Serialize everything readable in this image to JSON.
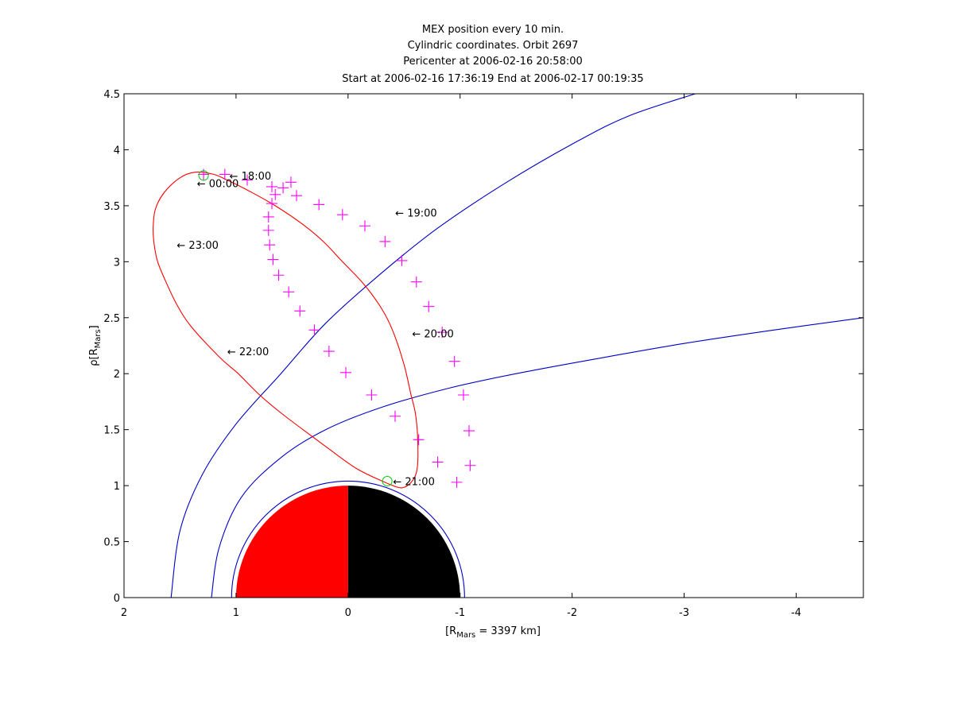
{
  "chart_data": {
    "type": "line",
    "title": [
      "MEX position every 10 min.",
      "Cylindric coordinates. Orbit 2697",
      "Pericenter at 2006-02-16 20:58:00",
      "Start at 2006-02-16 17:36:19 End at 2006-02-17 00:19:35"
    ],
    "xlabel": {
      "base": "[R",
      "sub": "Mars",
      "rest": " = 3397 km]"
    },
    "ylabel": {
      "base": "ρ[R",
      "sub": "Mars",
      "rest": "]"
    },
    "xlim": [
      2,
      -4.6
    ],
    "ylim": [
      0,
      4.5
    ],
    "x_ticks": [
      2,
      1,
      0,
      -1,
      -2,
      -3,
      -4
    ],
    "x_tick_labels": [
      "2",
      "1",
      "0",
      "-1",
      "-2",
      "-3",
      "-4"
    ],
    "y_ticks": [
      0,
      0.5,
      1,
      1.5,
      2,
      2.5,
      3,
      3.5,
      4,
      4.5
    ],
    "y_tick_labels": [
      "0",
      "0.5",
      "1",
      "1.5",
      "2",
      "2.5",
      "3",
      "3.5",
      "4",
      "4.5"
    ],
    "grid": false,
    "colors": {
      "orbit": "#ff0000",
      "markers": "#ff00ff",
      "boundaries": "#0000c8",
      "endpoints": "#00cc00",
      "dayside": "#ff0000",
      "nightside": "#000000",
      "axes": "#000000"
    },
    "mars": {
      "radius": 1,
      "dayside": "x>0",
      "nightside": "x<0"
    },
    "boundaries": [
      {
        "name": "bow shock",
        "x0": 1.58,
        "curve": [
          [
            1.58,
            0
          ],
          [
            1.5,
            0.6
          ],
          [
            1.3,
            1.1
          ],
          [
            1.0,
            1.55
          ],
          [
            0.6,
            2.0
          ],
          [
            0.2,
            2.45
          ],
          [
            -0.3,
            2.9
          ],
          [
            -0.8,
            3.3
          ],
          [
            -1.4,
            3.7
          ],
          [
            -2.0,
            4.05
          ],
          [
            -2.5,
            4.3
          ],
          [
            -3.1,
            4.5
          ]
        ]
      },
      {
        "name": "induced magnetospheric boundary",
        "x0": 1.22,
        "curve": [
          [
            1.22,
            0
          ],
          [
            1.15,
            0.45
          ],
          [
            0.95,
            0.9
          ],
          [
            0.6,
            1.25
          ],
          [
            0.2,
            1.5
          ],
          [
            -0.3,
            1.7
          ],
          [
            -0.9,
            1.87
          ],
          [
            -1.5,
            2.0
          ],
          [
            -2.2,
            2.13
          ],
          [
            -3.0,
            2.27
          ],
          [
            -3.8,
            2.39
          ],
          [
            -4.6,
            2.5
          ]
        ]
      },
      {
        "name": "ionosphere",
        "radius": 1.04
      }
    ],
    "orbit": [
      [
        -0.35,
        1.02
      ],
      [
        -0.48,
        0.98
      ],
      [
        -0.58,
        1.05
      ],
      [
        -0.62,
        1.18
      ],
      [
        -0.62,
        1.45
      ],
      [
        -0.6,
        1.65
      ],
      [
        -0.56,
        1.82
      ],
      [
        -0.5,
        2.08
      ],
      [
        -0.4,
        2.38
      ],
      [
        -0.3,
        2.58
      ],
      [
        -0.14,
        2.8
      ],
      [
        0.05,
        3.0
      ],
      [
        0.22,
        3.18
      ],
      [
        0.4,
        3.33
      ],
      [
        0.65,
        3.5
      ],
      [
        0.88,
        3.63
      ],
      [
        1.08,
        3.73
      ],
      [
        1.2,
        3.78
      ],
      [
        1.36,
        3.8
      ],
      [
        1.5,
        3.75
      ],
      [
        1.64,
        3.62
      ],
      [
        1.72,
        3.47
      ],
      [
        1.74,
        3.3
      ],
      [
        1.73,
        3.15
      ],
      [
        1.7,
        3.0
      ],
      [
        1.63,
        2.83
      ],
      [
        1.53,
        2.62
      ],
      [
        1.4,
        2.42
      ],
      [
        1.15,
        2.15
      ],
      [
        0.98,
        2.0
      ],
      [
        0.8,
        1.82
      ],
      [
        0.6,
        1.65
      ],
      [
        0.2,
        1.35
      ],
      [
        -0.08,
        1.15
      ],
      [
        -0.35,
        1.02
      ]
    ],
    "markers_10min": [
      [
        1.29,
        3.78
      ],
      [
        1.1,
        3.78
      ],
      [
        0.9,
        3.73
      ],
      [
        0.68,
        3.67
      ],
      [
        0.46,
        3.59
      ],
      [
        0.26,
        3.51
      ],
      [
        0.05,
        3.42
      ],
      [
        -0.15,
        3.32
      ],
      [
        -0.33,
        3.18
      ],
      [
        -0.48,
        3.01
      ],
      [
        -0.61,
        2.82
      ],
      [
        -0.72,
        2.6
      ],
      [
        -0.84,
        2.37
      ],
      [
        -0.95,
        2.11
      ],
      [
        -1.03,
        1.81
      ],
      [
        -1.08,
        1.49
      ],
      [
        -1.09,
        1.18
      ],
      [
        -0.97,
        1.03
      ],
      [
        -0.8,
        1.21
      ],
      [
        -0.63,
        1.41
      ],
      [
        -0.42,
        1.62
      ],
      [
        -0.21,
        1.81
      ],
      [
        0.02,
        2.01
      ],
      [
        0.17,
        2.2
      ],
      [
        0.3,
        2.39
      ],
      [
        0.43,
        2.56
      ],
      [
        0.53,
        2.73
      ],
      [
        0.62,
        2.88
      ],
      [
        0.67,
        3.02
      ],
      [
        0.7,
        3.15
      ],
      [
        0.71,
        3.28
      ],
      [
        0.71,
        3.4
      ],
      [
        0.68,
        3.52
      ],
      [
        0.65,
        3.6
      ],
      [
        0.58,
        3.66
      ],
      [
        0.51,
        3.71
      ]
    ],
    "endpoints": [
      [
        1.29,
        3.77
      ],
      [
        -0.35,
        1.04
      ]
    ],
    "annotations": [
      {
        "text": "← 18:00",
        "x": 1.08,
        "y": 3.77
      },
      {
        "text": "← 19:00",
        "x": -0.4,
        "y": 3.44
      },
      {
        "text": "← 20:00",
        "x": -0.55,
        "y": 2.36
      },
      {
        "text": "← 21:00",
        "x": -0.38,
        "y": 1.04
      },
      {
        "text": "← 22:00",
        "x": 1.1,
        "y": 2.2
      },
      {
        "text": "← 23:00",
        "x": 1.55,
        "y": 3.15
      },
      {
        "text": "← 00:00",
        "x": 1.37,
        "y": 3.7
      }
    ]
  }
}
